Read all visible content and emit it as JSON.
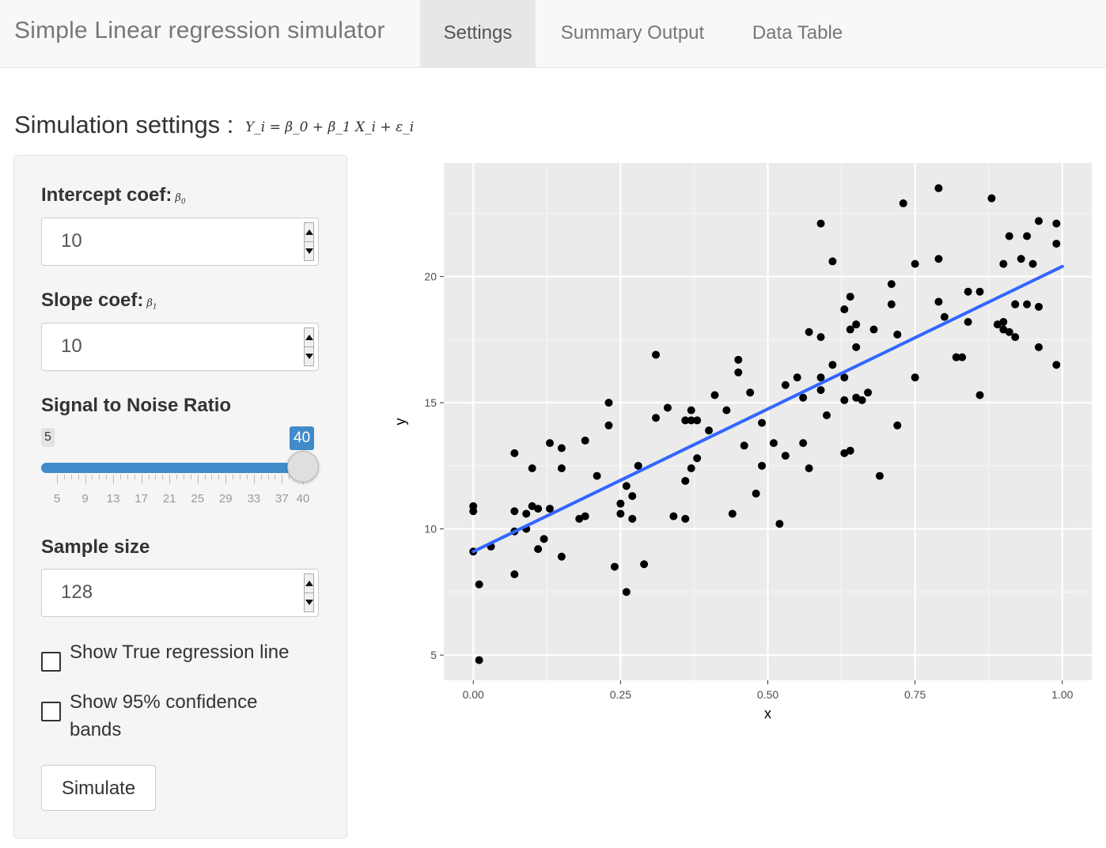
{
  "navbar": {
    "brand": "Simple Linear regression simulator",
    "tabs": [
      {
        "label": "Settings",
        "active": true
      },
      {
        "label": "Summary Output",
        "active": false
      },
      {
        "label": "Data Table",
        "active": false
      }
    ]
  },
  "title": {
    "text": "Simulation settings :",
    "formula": "Y_i = β_0 + β_1 X_i + ε_i"
  },
  "inputs": {
    "intercept": {
      "label": "Intercept coef:",
      "symbol": "β",
      "sub": "0",
      "value": "10"
    },
    "slope": {
      "label": "Slope coef:",
      "symbol": "β",
      "sub": "1",
      "value": "10"
    },
    "sample_size": {
      "label": "Sample size",
      "value": "128"
    }
  },
  "slider": {
    "label": "Signal to Noise Ratio",
    "min": 5,
    "max": 40,
    "value": 40,
    "min_label": "5",
    "value_label": "40",
    "ticks": [
      "5",
      "9",
      "13",
      "17",
      "21",
      "25",
      "29",
      "33",
      "37",
      "40"
    ]
  },
  "checkboxes": {
    "true_line": {
      "label": "Show True regression line",
      "checked": false
    },
    "conf_bands": {
      "label": "Show 95% confidence bands",
      "checked": false
    }
  },
  "button": {
    "label": "Simulate"
  },
  "colors": {
    "accent": "#428bca",
    "fit_line": "#3366ff",
    "panel": "#ebebeb"
  },
  "chart_data": {
    "type": "scatter",
    "title": "",
    "xlabel": "x",
    "ylabel": "y",
    "xlim": [
      -0.05,
      1.05
    ],
    "ylim": [
      4,
      24.5
    ],
    "x_ticks": [
      0.0,
      0.25,
      0.5,
      0.75,
      1.0
    ],
    "x_tick_labels": [
      "0.00",
      "0.25",
      "0.50",
      "0.75",
      "1.00"
    ],
    "y_ticks": [
      5,
      10,
      15,
      20
    ],
    "y_tick_labels": [
      "5",
      "10",
      "15",
      "20"
    ],
    "grid": true,
    "fit_line": {
      "x": [
        0.0,
        1.0
      ],
      "y": [
        9.1,
        20.4
      ]
    },
    "points": [
      [
        0.0,
        10.7
      ],
      [
        0.0,
        10.9
      ],
      [
        0.0,
        9.1
      ],
      [
        0.01,
        7.8
      ],
      [
        0.01,
        4.8
      ],
      [
        0.03,
        9.3
      ],
      [
        0.07,
        13.0
      ],
      [
        0.07,
        10.7
      ],
      [
        0.07,
        9.9
      ],
      [
        0.07,
        8.2
      ],
      [
        0.09,
        10.0
      ],
      [
        0.09,
        10.6
      ],
      [
        0.1,
        12.4
      ],
      [
        0.1,
        10.9
      ],
      [
        0.11,
        10.8
      ],
      [
        0.11,
        9.2
      ],
      [
        0.12,
        9.6
      ],
      [
        0.13,
        10.8
      ],
      [
        0.13,
        13.4
      ],
      [
        0.15,
        13.2
      ],
      [
        0.15,
        12.4
      ],
      [
        0.15,
        8.9
      ],
      [
        0.18,
        10.4
      ],
      [
        0.19,
        10.5
      ],
      [
        0.19,
        13.5
      ],
      [
        0.21,
        12.1
      ],
      [
        0.23,
        15.0
      ],
      [
        0.23,
        14.1
      ],
      [
        0.24,
        8.5
      ],
      [
        0.25,
        11.0
      ],
      [
        0.25,
        10.6
      ],
      [
        0.26,
        7.5
      ],
      [
        0.26,
        11.7
      ],
      [
        0.27,
        10.4
      ],
      [
        0.27,
        11.3
      ],
      [
        0.28,
        12.5
      ],
      [
        0.29,
        8.6
      ],
      [
        0.31,
        14.4
      ],
      [
        0.31,
        16.9
      ],
      [
        0.33,
        14.8
      ],
      [
        0.34,
        10.5
      ],
      [
        0.36,
        11.9
      ],
      [
        0.36,
        10.4
      ],
      [
        0.36,
        14.3
      ],
      [
        0.37,
        14.7
      ],
      [
        0.37,
        14.3
      ],
      [
        0.37,
        12.4
      ],
      [
        0.38,
        14.3
      ],
      [
        0.38,
        12.8
      ],
      [
        0.4,
        13.9
      ],
      [
        0.41,
        15.3
      ],
      [
        0.43,
        14.7
      ],
      [
        0.44,
        10.6
      ],
      [
        0.45,
        16.7
      ],
      [
        0.45,
        16.2
      ],
      [
        0.46,
        13.3
      ],
      [
        0.47,
        15.4
      ],
      [
        0.48,
        11.4
      ],
      [
        0.49,
        12.5
      ],
      [
        0.49,
        14.2
      ],
      [
        0.51,
        13.4
      ],
      [
        0.52,
        10.2
      ],
      [
        0.53,
        15.7
      ],
      [
        0.53,
        12.9
      ],
      [
        0.55,
        16.0
      ],
      [
        0.56,
        13.4
      ],
      [
        0.56,
        15.2
      ],
      [
        0.57,
        12.4
      ],
      [
        0.57,
        17.8
      ],
      [
        0.59,
        17.6
      ],
      [
        0.59,
        16.0
      ],
      [
        0.59,
        15.5
      ],
      [
        0.59,
        22.1
      ],
      [
        0.6,
        14.5
      ],
      [
        0.61,
        20.6
      ],
      [
        0.61,
        16.5
      ],
      [
        0.63,
        18.7
      ],
      [
        0.63,
        15.1
      ],
      [
        0.63,
        13.0
      ],
      [
        0.63,
        16.0
      ],
      [
        0.64,
        19.2
      ],
      [
        0.64,
        17.9
      ],
      [
        0.64,
        13.1
      ],
      [
        0.65,
        15.2
      ],
      [
        0.65,
        17.2
      ],
      [
        0.65,
        18.1
      ],
      [
        0.66,
        15.1
      ],
      [
        0.67,
        15.4
      ],
      [
        0.68,
        17.9
      ],
      [
        0.69,
        12.1
      ],
      [
        0.71,
        19.7
      ],
      [
        0.71,
        18.9
      ],
      [
        0.72,
        17.7
      ],
      [
        0.72,
        14.1
      ],
      [
        0.73,
        22.9
      ],
      [
        0.75,
        16.0
      ],
      [
        0.75,
        20.5
      ],
      [
        0.79,
        19.0
      ],
      [
        0.79,
        20.7
      ],
      [
        0.79,
        23.5
      ],
      [
        0.8,
        18.4
      ],
      [
        0.82,
        16.8
      ],
      [
        0.82,
        16.8
      ],
      [
        0.83,
        16.8
      ],
      [
        0.84,
        19.4
      ],
      [
        0.84,
        18.2
      ],
      [
        0.86,
        19.4
      ],
      [
        0.86,
        15.3
      ],
      [
        0.88,
        23.1
      ],
      [
        0.89,
        18.1
      ],
      [
        0.9,
        18.2
      ],
      [
        0.9,
        20.5
      ],
      [
        0.9,
        17.9
      ],
      [
        0.91,
        21.6
      ],
      [
        0.91,
        17.8
      ],
      [
        0.92,
        17.6
      ],
      [
        0.92,
        18.9
      ],
      [
        0.92,
        18.9
      ],
      [
        0.93,
        20.7
      ],
      [
        0.94,
        21.6
      ],
      [
        0.94,
        18.9
      ],
      [
        0.95,
        20.5
      ],
      [
        0.96,
        17.2
      ],
      [
        0.96,
        18.8
      ],
      [
        0.96,
        22.2
      ],
      [
        0.99,
        21.3
      ],
      [
        0.99,
        22.1
      ],
      [
        0.99,
        16.5
      ]
    ]
  }
}
